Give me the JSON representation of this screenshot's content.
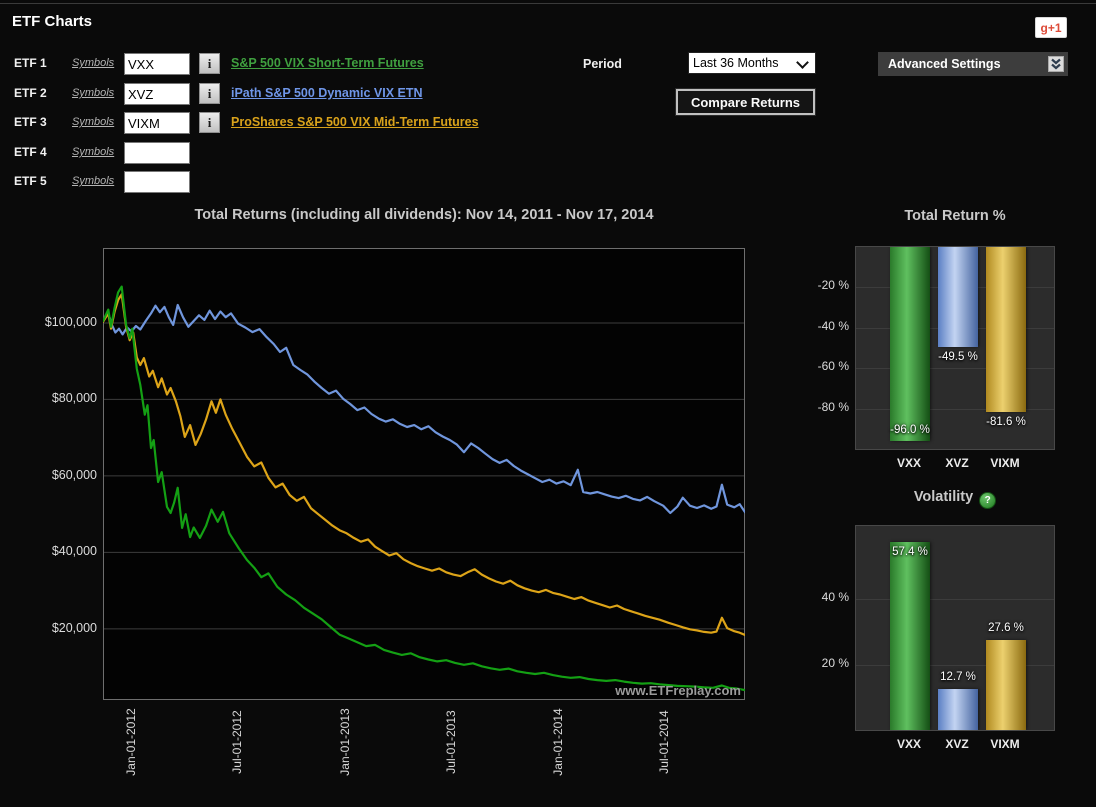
{
  "page": {
    "title": "ETF Charts"
  },
  "gplus": {
    "label": "g+1"
  },
  "form": {
    "info_label": "i",
    "period_label": "Period",
    "period_value": "Last 36 Months",
    "compare_button": "Compare Returns",
    "advanced_settings": "Advanced Settings",
    "rows": [
      {
        "label": "ETF 1",
        "symbols": "Symbols",
        "value": "VXX",
        "has_info": true,
        "name": "S&P 500 VIX Short-Term Futures",
        "color": "#3fa03f"
      },
      {
        "label": "ETF 2",
        "symbols": "Symbols",
        "value": "XVZ",
        "has_info": true,
        "name": "iPath S&P 500 Dynamic VIX ETN",
        "color": "#6f96e8"
      },
      {
        "label": "ETF 3",
        "symbols": "Symbols",
        "value": "VIXM",
        "has_info": true,
        "name": "ProShares S&P 500 VIX Mid-Term Futures",
        "color": "#d9a21b"
      },
      {
        "label": "ETF 4",
        "symbols": "Symbols",
        "value": "",
        "has_info": false,
        "name": "",
        "color": ""
      },
      {
        "label": "ETF 5",
        "symbols": "Symbols",
        "value": "",
        "has_info": false,
        "name": "",
        "color": ""
      }
    ]
  },
  "watermark": "www.ETFreplay.com",
  "chart_data": [
    {
      "type": "line",
      "title": "Total Returns (including all dividends): Nov 14, 2011 - Nov 17, 2014",
      "units": "USD thousands (growth of $100,000)",
      "axis": {
        "months_total": 36.1,
        "v_top_k": 119.6,
        "v_bottom_k": 1.4,
        "grid": "horizontal-only"
      },
      "y_ticks": [
        {
          "label": "$100,000",
          "v": 100
        },
        {
          "label": "$80,000",
          "v": 80
        },
        {
          "label": "$60,000",
          "v": 60
        },
        {
          "label": "$40,000",
          "v": 40
        },
        {
          "label": "$20,000",
          "v": 20
        }
      ],
      "x_ticks": [
        {
          "label": "Jan-01-2012",
          "m": 1.58
        },
        {
          "label": "Jul-01-2012",
          "m": 7.56
        },
        {
          "label": "Jan-01-2013",
          "m": 13.6
        },
        {
          "label": "Jul-01-2013",
          "m": 19.55
        },
        {
          "label": "Jan-01-2014",
          "m": 25.59
        },
        {
          "label": "Jul-01-2014",
          "m": 31.54
        }
      ],
      "series": [
        {
          "name": "VXX",
          "color": "#14a014",
          "points": [
            0,
            100.5,
            0.3,
            103.5,
            0.45,
            99,
            0.65,
            104,
            0.85,
            108,
            1.05,
            109.5,
            1.3,
            99.5,
            1.5,
            96,
            1.65,
            98.5,
            1.9,
            88,
            2.1,
            83.8,
            2.35,
            76,
            2.5,
            78.5,
            2.7,
            67.3,
            2.85,
            69.4,
            3.1,
            58.4,
            3.3,
            61,
            3.6,
            51.9,
            3.8,
            50.3,
            4.0,
            53,
            4.2,
            56.9,
            4.45,
            46.4,
            4.65,
            50,
            4.9,
            44,
            5.1,
            46.5,
            5.45,
            43.8,
            5.8,
            47,
            6.1,
            51.2,
            6.45,
            48,
            6.75,
            50.6,
            7.1,
            45,
            7.65,
            41,
            8.1,
            38,
            8.5,
            36,
            8.9,
            33.5,
            9.3,
            34.5,
            9.8,
            31,
            10.3,
            29,
            10.8,
            27.5,
            11.3,
            25.5,
            11.8,
            24,
            12.3,
            22.5,
            12.8,
            20.5,
            13.3,
            18.5,
            13.8,
            17.5,
            14.3,
            16.5,
            14.8,
            15.5,
            15.3,
            15.8,
            15.8,
            14.5,
            16.3,
            13.8,
            16.8,
            13.2,
            17.3,
            13.6,
            17.8,
            12.6,
            18.3,
            12.0,
            18.8,
            11.5,
            19.3,
            11.8,
            19.8,
            11.1,
            20.3,
            10.6,
            20.8,
            11.0,
            21.3,
            10.2,
            21.8,
            9.7,
            22.3,
            9.3,
            22.8,
            9.6,
            23.3,
            8.9,
            23.8,
            8.5,
            24.3,
            8.2,
            24.8,
            8.5,
            25.3,
            7.9,
            25.8,
            7.5,
            26.3,
            7.2,
            26.8,
            7.4,
            27.3,
            6.9,
            27.8,
            6.6,
            28.3,
            6.4,
            28.8,
            6.6,
            29.3,
            6.2,
            29.8,
            5.9,
            30.3,
            5.7,
            30.8,
            5.8,
            31.3,
            5.5,
            31.8,
            5.3,
            32.3,
            5.1,
            32.8,
            5.0,
            33.3,
            4.9,
            33.8,
            4.7,
            34.3,
            4.6,
            34.8,
            5.2,
            35.2,
            4.6,
            35.6,
            4.4,
            36.1,
            4.0
          ]
        },
        {
          "name": "XVZ",
          "color": "#7096dd",
          "points": [
            0,
            100.8,
            0.3,
            102.5,
            0.5,
            99.5,
            0.7,
            97.5,
            0.9,
            98.5,
            1.1,
            97,
            1.35,
            98.8,
            1.6,
            97.8,
            1.85,
            99.2,
            2.1,
            98.3,
            2.4,
            100.5,
            2.7,
            102.5,
            2.95,
            104.5,
            3.2,
            102.8,
            3.45,
            104.2,
            3.7,
            101.5,
            3.95,
            99.5,
            4.2,
            104.7,
            4.5,
            101.5,
            4.8,
            99,
            5.1,
            100.5,
            5.4,
            102,
            5.7,
            100.8,
            6.0,
            103.2,
            6.3,
            101,
            6.6,
            103,
            6.9,
            101.5,
            7.2,
            102.5,
            7.6,
            99.8,
            8.0,
            98.8,
            8.4,
            97.6,
            8.8,
            98.4,
            9.2,
            96.3,
            9.6,
            94.5,
            9.95,
            92.4,
            10.3,
            93.5,
            10.7,
            89,
            11.1,
            87.7,
            11.5,
            86.5,
            11.9,
            84.6,
            12.3,
            83,
            12.7,
            81.5,
            13.1,
            82.3,
            13.5,
            80.2,
            13.9,
            78.8,
            14.3,
            77.2,
            14.7,
            77.9,
            15.1,
            76.2,
            15.5,
            75.0,
            15.9,
            74.2,
            16.3,
            74.8,
            16.7,
            73.6,
            17.1,
            72.8,
            17.5,
            73.3,
            17.9,
            72.2,
            18.3,
            73.0,
            18.7,
            71.4,
            19.1,
            70.3,
            19.5,
            69.4,
            19.9,
            68.2,
            20.3,
            66.2,
            20.7,
            68.5,
            21.1,
            67.3,
            21.5,
            65.8,
            21.9,
            64.4,
            22.3,
            63.4,
            22.7,
            64.2,
            23.1,
            62.6,
            23.5,
            61.4,
            23.9,
            60.4,
            24.3,
            59.4,
            24.7,
            58.4,
            25.1,
            59.0,
            25.5,
            58.0,
            25.9,
            58.6,
            26.3,
            57.6,
            26.7,
            61.6,
            27.0,
            55.8,
            27.4,
            55.4,
            27.8,
            55.8,
            28.2,
            55.2,
            28.6,
            54.6,
            29.0,
            54.2,
            29.4,
            54.8,
            29.8,
            54.0,
            30.2,
            53.6,
            30.6,
            54.5,
            31.0,
            53.4,
            31.5,
            52.2,
            31.9,
            50.3,
            32.3,
            52.0,
            32.6,
            54.3,
            33.0,
            52.2,
            33.4,
            51.6,
            33.8,
            52.3,
            34.2,
            51.4,
            34.5,
            52.0,
            34.8,
            57.7,
            35.1,
            52.5,
            35.5,
            51.8,
            35.8,
            52.6,
            36.1,
            50.5
          ]
        },
        {
          "name": "VIXM",
          "color": "#dda418",
          "points": [
            0,
            100.3,
            0.3,
            102.5,
            0.45,
            98.5,
            0.65,
            103,
            0.85,
            106,
            1.05,
            107.5,
            1.3,
            99,
            1.5,
            95.5,
            1.7,
            97.5,
            1.9,
            91,
            2.1,
            89,
            2.3,
            90.8,
            2.6,
            86,
            2.8,
            87.5,
            3.1,
            83.2,
            3.3,
            85.5,
            3.6,
            81.3,
            3.8,
            83,
            4.1,
            79.5,
            4.35,
            75.6,
            4.6,
            70.2,
            4.9,
            73.3,
            5.2,
            68.1,
            5.5,
            71,
            5.8,
            74.8,
            6.1,
            79.5,
            6.35,
            76.5,
            6.6,
            80,
            6.9,
            76,
            7.25,
            72.5,
            7.65,
            69,
            8.1,
            65,
            8.5,
            62.5,
            8.9,
            63.5,
            9.3,
            59.5,
            9.7,
            57,
            10.1,
            58,
            10.5,
            55,
            10.9,
            53.5,
            11.3,
            54.5,
            11.7,
            51.5,
            12.1,
            50,
            12.5,
            48.5,
            12.9,
            47,
            13.3,
            45.8,
            13.7,
            45,
            14.1,
            43.8,
            14.5,
            42.8,
            14.9,
            43.4,
            15.3,
            41.5,
            15.7,
            40.3,
            16.1,
            39.2,
            16.5,
            39.8,
            16.9,
            38.2,
            17.3,
            37.2,
            17.7,
            36.4,
            18.1,
            35.8,
            18.5,
            35.2,
            18.9,
            35.8,
            19.3,
            34.8,
            19.7,
            34.2,
            20.1,
            33.8,
            20.5,
            34.8,
            20.9,
            35.6,
            21.3,
            34.2,
            21.7,
            33.2,
            22.1,
            32.4,
            22.5,
            31.8,
            22.9,
            32.6,
            23.3,
            31.4,
            23.7,
            30.6,
            24.1,
            30.0,
            24.5,
            29.6,
            24.9,
            30.2,
            25.3,
            29.4,
            25.7,
            29.0,
            26.1,
            28.4,
            26.5,
            27.8,
            26.9,
            28.3,
            27.3,
            27.4,
            27.7,
            26.8,
            28.1,
            26.2,
            28.5,
            25.6,
            28.9,
            26.1,
            29.3,
            25.2,
            29.7,
            24.6,
            30.1,
            24.0,
            30.5,
            23.4,
            30.9,
            22.9,
            31.3,
            22.4,
            31.8,
            21.6,
            32.2,
            21.0,
            32.6,
            20.4,
            33.0,
            19.9,
            33.4,
            19.6,
            33.8,
            19.2,
            34.2,
            19.0,
            34.5,
            19.3,
            34.8,
            22.9,
            35.1,
            20.2,
            35.5,
            19.4,
            35.8,
            19.0,
            36.1,
            18.4
          ]
        }
      ]
    },
    {
      "type": "bar",
      "title": "Total Return %",
      "direction": "down",
      "categories": [
        "VXX",
        "XVZ",
        "VIXM"
      ],
      "values": [
        -96.0,
        -49.5,
        -81.6
      ],
      "value_labels": [
        "-96.0 %",
        "-49.5 %",
        "-81.6 %"
      ],
      "label_inside": [
        true,
        false,
        false
      ],
      "axis_range": [
        0,
        -100
      ],
      "y_ticks": [
        {
          "label": "-20 %",
          "v": -20
        },
        {
          "label": "-40 %",
          "v": -40
        },
        {
          "label": "-60 %",
          "v": -60
        },
        {
          "label": "-80 %",
          "v": -80
        }
      ],
      "bar_colors": [
        {
          "edge": "#2a7a2a",
          "mid": "#5fc05f",
          "dark": "#144e14"
        },
        {
          "edge": "#5b7fc4",
          "mid": "#c3d4f2",
          "dark": "#44639f"
        },
        {
          "edge": "#b08a20",
          "mid": "#ecd06e",
          "dark": "#8a6a10"
        }
      ]
    },
    {
      "type": "bar",
      "title": "Volatility",
      "help_icon": "?",
      "direction": "up",
      "categories": [
        "VXX",
        "XVZ",
        "VIXM"
      ],
      "values": [
        57.4,
        12.7,
        27.6
      ],
      "value_labels": [
        "57.4 %",
        "12.7 %",
        "27.6 %"
      ],
      "label_inside": [
        true,
        false,
        false
      ],
      "axis_range": [
        0,
        62.4
      ],
      "y_ticks": [
        {
          "label": "40 %",
          "v": 40
        },
        {
          "label": "20 %",
          "v": 20
        }
      ],
      "bar_colors": [
        {
          "edge": "#2a7a2a",
          "mid": "#5fc05f",
          "dark": "#144e14"
        },
        {
          "edge": "#5b7fc4",
          "mid": "#c3d4f2",
          "dark": "#44639f"
        },
        {
          "edge": "#b08a20",
          "mid": "#ecd06e",
          "dark": "#8a6a10"
        }
      ]
    }
  ]
}
